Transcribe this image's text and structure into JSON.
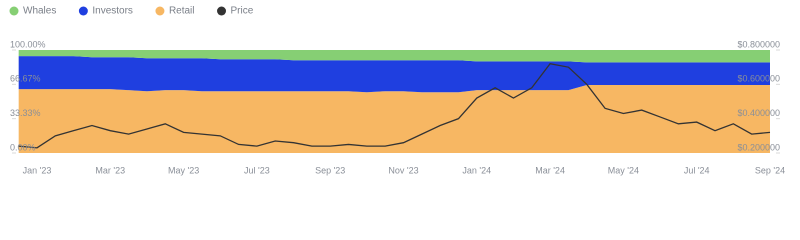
{
  "chart_data": {
    "type": "stacked-area-line",
    "x": [
      null,
      "Jan '23",
      null,
      null,
      null,
      "Mar '23",
      null,
      null,
      null,
      "May '23",
      null,
      null,
      null,
      "Jul '23",
      null,
      null,
      null,
      "Sep '23",
      null,
      null,
      null,
      "Nov '23",
      null,
      null,
      null,
      "Jan '24",
      null,
      null,
      null,
      "Mar '24",
      null,
      null,
      null,
      "May '24",
      null,
      null,
      null,
      "Jul '24",
      null,
      null,
      null,
      "Sep '24"
    ],
    "series": [
      {
        "name": "Whales",
        "color": "#86cf74",
        "values": [
          6,
          6,
          6,
          6,
          7,
          7,
          7,
          8,
          8,
          8,
          8,
          9,
          9,
          9,
          9,
          10,
          10,
          10,
          10,
          10,
          10,
          10,
          10,
          10,
          10,
          11,
          11,
          11,
          11,
          11,
          11,
          12,
          12,
          12,
          12,
          12,
          12,
          12,
          12,
          12,
          12,
          12
        ]
      },
      {
        "name": "Investors",
        "color": "#1f3fe0",
        "values": [
          32,
          32,
          32,
          32,
          31,
          31,
          32,
          32,
          31,
          31,
          32,
          31,
          31,
          31,
          31,
          30,
          30,
          30,
          30,
          31,
          30,
          30,
          31,
          31,
          31,
          28,
          28,
          28,
          28,
          28,
          28,
          22,
          22,
          22,
          22,
          22,
          22,
          22,
          22,
          22,
          22,
          22
        ]
      },
      {
        "name": "Retail",
        "color": "#f7b763",
        "values": [
          62,
          62,
          62,
          62,
          62,
          62,
          61,
          60,
          61,
          61,
          60,
          60,
          60,
          60,
          60,
          60,
          60,
          60,
          60,
          59,
          60,
          60,
          59,
          59,
          59,
          61,
          61,
          61,
          61,
          61,
          61,
          66,
          66,
          66,
          66,
          66,
          66,
          66,
          66,
          66,
          66,
          66
        ]
      },
      {
        "name": "Price",
        "color": "#333333",
        "axis": "y2",
        "values": [
          0.24,
          0.23,
          0.3,
          0.33,
          0.36,
          0.33,
          0.31,
          0.34,
          0.37,
          0.32,
          0.31,
          0.3,
          0.25,
          0.24,
          0.27,
          0.26,
          0.24,
          0.24,
          0.25,
          0.24,
          0.24,
          0.26,
          0.31,
          0.36,
          0.4,
          0.52,
          0.58,
          0.52,
          0.58,
          0.72,
          0.7,
          0.6,
          0.46,
          0.43,
          0.45,
          0.41,
          0.37,
          0.38,
          0.33,
          0.37,
          0.31,
          0.32
        ]
      }
    ],
    "ylim": [
      0,
      100
    ],
    "yticks": [
      {
        "value": 0,
        "label": "0.00%"
      },
      {
        "value": 33.33,
        "label": "33.33%"
      },
      {
        "value": 66.67,
        "label": "66.67%"
      },
      {
        "value": 100,
        "label": "100.00%"
      }
    ],
    "y2lim": [
      0.2,
      0.8
    ],
    "y2ticks": [
      {
        "value": 0.2,
        "label": "$0.200000"
      },
      {
        "value": 0.4,
        "label": "$0.400000"
      },
      {
        "value": 0.6,
        "label": "$0.600000"
      },
      {
        "value": 0.8,
        "label": "$0.800000"
      }
    ]
  }
}
